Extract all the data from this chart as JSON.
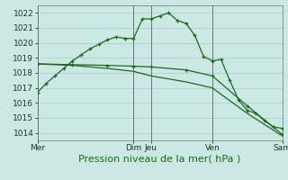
{
  "bg_color": "#cce8e4",
  "grid_color": "#aacccc",
  "line_color": "#1a6b1a",
  "xlabel": "Pression niveau de la mer( hPa )",
  "xlabel_fontsize": 8,
  "tick_fontsize": 6.5,
  "ylim": [
    1013.5,
    1022.5
  ],
  "yticks": [
    1014,
    1015,
    1016,
    1017,
    1018,
    1019,
    1020,
    1021,
    1022
  ],
  "xlim_min": 0,
  "xlim_max": 28,
  "vline_positions": [
    0,
    11,
    13,
    20,
    28
  ],
  "xtick_positions": [
    0,
    11,
    13,
    20,
    28
  ],
  "xtick_labels": [
    "Mer",
    "Dim",
    "Jeu",
    "Ven",
    "Sam"
  ],
  "series1_x": [
    0,
    1,
    2,
    3,
    4,
    5,
    6,
    7,
    8,
    9,
    10,
    11,
    12,
    13,
    14,
    15,
    16,
    17,
    18,
    19,
    20,
    21,
    22,
    23,
    24,
    25,
    26,
    27,
    28
  ],
  "series1_y": [
    1016.7,
    1017.3,
    1017.8,
    1018.3,
    1018.8,
    1019.2,
    1019.6,
    1019.9,
    1020.2,
    1020.4,
    1020.3,
    1020.3,
    1021.6,
    1021.6,
    1021.8,
    1022.0,
    1021.5,
    1021.3,
    1020.5,
    1019.1,
    1018.8,
    1018.9,
    1017.5,
    1016.2,
    1015.5,
    1015.3,
    1014.8,
    1014.4,
    1014.3
  ],
  "series2_x": [
    0,
    4,
    8,
    11,
    13,
    17,
    20,
    24,
    28
  ],
  "series2_y": [
    1018.6,
    1018.55,
    1018.5,
    1018.45,
    1018.4,
    1018.2,
    1017.8,
    1015.8,
    1013.9
  ],
  "series3_x": [
    0,
    4,
    8,
    11,
    13,
    17,
    20,
    24,
    28
  ],
  "series3_y": [
    1018.6,
    1018.5,
    1018.3,
    1018.1,
    1017.8,
    1017.4,
    1017.0,
    1015.3,
    1013.8
  ]
}
